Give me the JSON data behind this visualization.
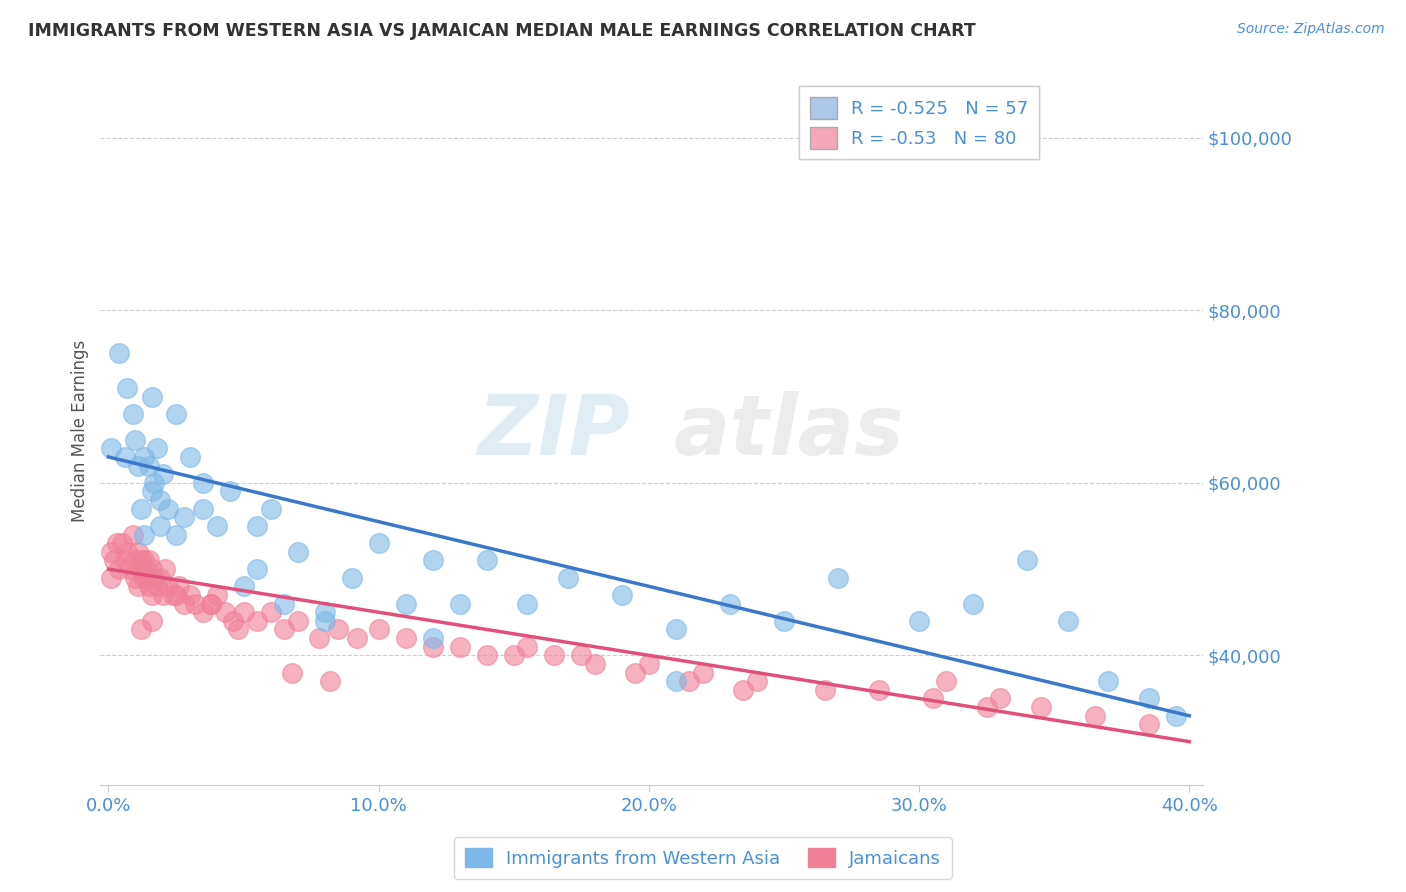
{
  "title": "IMMIGRANTS FROM WESTERN ASIA VS JAMAICAN MEDIAN MALE EARNINGS CORRELATION CHART",
  "source": "Source: ZipAtlas.com",
  "ylabel": "Median Male Earnings",
  "xlim": [
    -0.003,
    0.405
  ],
  "ylim": [
    25000,
    107000
  ],
  "yticks": [
    40000,
    60000,
    80000,
    100000
  ],
  "ytick_labels": [
    "$40,000",
    "$60,000",
    "$80,000",
    "$100,000"
  ],
  "xticks": [
    0.0,
    0.1,
    0.2,
    0.3,
    0.4
  ],
  "xtick_labels": [
    "0.0%",
    "10.0%",
    "20.0%",
    "30.0%",
    "40.0%"
  ],
  "legend_entries": [
    {
      "label": "Immigrants from Western Asia",
      "R": -0.525,
      "N": 57,
      "color": "#aec6e8"
    },
    {
      "label": "Jamaicans",
      "R": -0.53,
      "N": 80,
      "color": "#f4a7b9"
    }
  ],
  "blue_line_color": "#3a78c9",
  "pink_line_color": "#e0507a",
  "dot_blue": "#7db8e8",
  "dot_pink": "#f08098",
  "axis_color": "#4a90d9",
  "grid_color": "#b0b0b0",
  "title_color": "#333333",
  "source_color": "#4a90d9",
  "background": "#ffffff",
  "watermark_zip": "ZIP",
  "watermark_atlas": "atlas",
  "blue_line_x0": 0.0,
  "blue_line_y0": 63000,
  "blue_line_x1": 0.4,
  "blue_line_y1": 33000,
  "pink_line_x0": 0.0,
  "pink_line_y0": 50000,
  "pink_line_x1": 0.4,
  "pink_line_y1": 30000,
  "blue_scatter_x": [
    0.001,
    0.004,
    0.006,
    0.007,
    0.009,
    0.01,
    0.011,
    0.012,
    0.013,
    0.015,
    0.016,
    0.017,
    0.018,
    0.019,
    0.02,
    0.022,
    0.025,
    0.028,
    0.03,
    0.035,
    0.04,
    0.045,
    0.05,
    0.055,
    0.06,
    0.065,
    0.07,
    0.08,
    0.09,
    0.1,
    0.11,
    0.12,
    0.13,
    0.14,
    0.155,
    0.17,
    0.19,
    0.21,
    0.23,
    0.25,
    0.27,
    0.3,
    0.32,
    0.34,
    0.355,
    0.37,
    0.385,
    0.395,
    0.013,
    0.016,
    0.019,
    0.025,
    0.035,
    0.055,
    0.08,
    0.12,
    0.21
  ],
  "blue_scatter_y": [
    64000,
    75000,
    63000,
    71000,
    68000,
    65000,
    62000,
    57000,
    63000,
    62000,
    70000,
    60000,
    64000,
    58000,
    61000,
    57000,
    68000,
    56000,
    63000,
    57000,
    55000,
    59000,
    48000,
    55000,
    57000,
    46000,
    52000,
    45000,
    49000,
    53000,
    46000,
    51000,
    46000,
    51000,
    46000,
    49000,
    47000,
    43000,
    46000,
    44000,
    49000,
    44000,
    46000,
    51000,
    44000,
    37000,
    35000,
    33000,
    54000,
    59000,
    55000,
    54000,
    60000,
    50000,
    44000,
    42000,
    37000
  ],
  "pink_scatter_x": [
    0.001,
    0.001,
    0.002,
    0.003,
    0.004,
    0.005,
    0.006,
    0.007,
    0.008,
    0.009,
    0.01,
    0.01,
    0.011,
    0.011,
    0.012,
    0.012,
    0.013,
    0.013,
    0.014,
    0.014,
    0.015,
    0.015,
    0.016,
    0.016,
    0.017,
    0.018,
    0.019,
    0.02,
    0.021,
    0.022,
    0.024,
    0.026,
    0.028,
    0.03,
    0.032,
    0.035,
    0.038,
    0.04,
    0.043,
    0.046,
    0.05,
    0.055,
    0.06,
    0.065,
    0.07,
    0.078,
    0.085,
    0.092,
    0.1,
    0.11,
    0.12,
    0.13,
    0.14,
    0.155,
    0.165,
    0.18,
    0.2,
    0.22,
    0.24,
    0.265,
    0.285,
    0.305,
    0.325,
    0.345,
    0.365,
    0.385,
    0.175,
    0.195,
    0.215,
    0.235,
    0.31,
    0.33,
    0.15,
    0.068,
    0.082,
    0.048,
    0.038,
    0.025,
    0.016,
    0.012
  ],
  "pink_scatter_y": [
    52000,
    49000,
    51000,
    53000,
    50000,
    53000,
    51000,
    52000,
    50000,
    54000,
    51000,
    49000,
    52000,
    48000,
    51000,
    50000,
    49000,
    51000,
    50000,
    49000,
    51000,
    48000,
    50000,
    47000,
    49000,
    48000,
    49000,
    47000,
    50000,
    48000,
    47000,
    48000,
    46000,
    47000,
    46000,
    45000,
    46000,
    47000,
    45000,
    44000,
    45000,
    44000,
    45000,
    43000,
    44000,
    42000,
    43000,
    42000,
    43000,
    42000,
    41000,
    41000,
    40000,
    41000,
    40000,
    39000,
    39000,
    38000,
    37000,
    36000,
    36000,
    35000,
    34000,
    34000,
    33000,
    32000,
    40000,
    38000,
    37000,
    36000,
    37000,
    35000,
    40000,
    38000,
    37000,
    43000,
    46000,
    47000,
    44000,
    43000
  ]
}
